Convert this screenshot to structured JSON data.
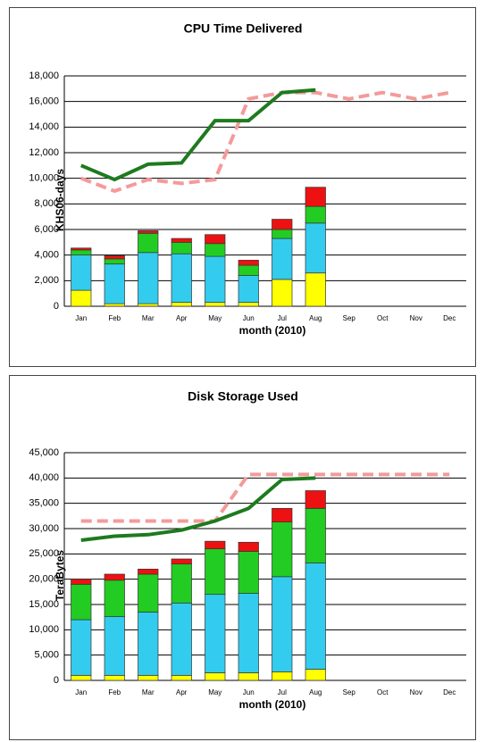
{
  "chart_data": [
    {
      "type": "bar",
      "stacked": true,
      "title": "CPU Time Delivered",
      "y_label": "KHS06-days",
      "x_label": "month (2010)",
      "categories": [
        "Jan",
        "Feb",
        "Mar",
        "Apr",
        "May",
        "Jun",
        "Jul",
        "Aug",
        "Sep",
        "Oct",
        "Nov",
        "Dec"
      ],
      "ylim": [
        0,
        18000
      ],
      "yticks": [
        0,
        {
          "value": 2000,
          "label": "2,000"
        },
        {
          "value": 4000,
          "label": "4,000"
        },
        {
          "value": 6000,
          "label": "6,000"
        },
        {
          "value": 8000,
          "label": "8,000"
        },
        {
          "value": 10000,
          "label": "10,000"
        },
        {
          "value": 12000,
          "label": "12,000"
        },
        {
          "value": 14000,
          "label": "14,000"
        },
        {
          "value": 16000,
          "label": "16,000"
        },
        {
          "value": 18000,
          "label": "18,000"
        }
      ],
      "grid": true,
      "series": [
        {
          "type": "bar",
          "color": "#ffff00",
          "values": [
            1250,
            200,
            200,
            300,
            300,
            300,
            2100,
            2600,
            null,
            null,
            null,
            null
          ]
        },
        {
          "type": "bar",
          "color": "#33ccee",
          "values": [
            2750,
            3100,
            4000,
            3800,
            3600,
            2100,
            3200,
            3900,
            null,
            null,
            null,
            null
          ]
        },
        {
          "type": "bar",
          "color": "#22cc22",
          "values": [
            400,
            400,
            1500,
            900,
            1000,
            800,
            700,
            1300,
            null,
            null,
            null,
            null
          ]
        },
        {
          "type": "bar",
          "color": "#ee1111",
          "values": [
            150,
            250,
            200,
            300,
            700,
            400,
            800,
            1500,
            null,
            null,
            null,
            null
          ]
        },
        {
          "type": "line",
          "dashed": true,
          "color": "#f49a9a",
          "values": [
            10000,
            9000,
            9900,
            9600,
            9900,
            16200,
            16700,
            16700,
            16200,
            16700,
            16200,
            16700
          ]
        },
        {
          "type": "line",
          "color": "#1e7a1e",
          "values": [
            11000,
            9900,
            11100,
            11200,
            14500,
            14500,
            16700,
            16900,
            null,
            null,
            null,
            null
          ]
        }
      ]
    },
    {
      "type": "bar",
      "stacked": true,
      "title": "Disk Storage Used",
      "y_label": "TeraBytes",
      "x_label": "month (2010)",
      "categories": [
        "Jan",
        "Feb",
        "Mar",
        "Apr",
        "May",
        "Jun",
        "Jul",
        "Aug",
        "Sep",
        "Oct",
        "Nov",
        "Dec"
      ],
      "ylim": [
        0,
        45000
      ],
      "yticks": [
        0,
        {
          "value": 5000,
          "label": "5,000"
        },
        {
          "value": 10000,
          "label": "10,000"
        },
        {
          "value": 15000,
          "label": "15,000"
        },
        {
          "value": 20000,
          "label": "20,000"
        },
        {
          "value": 25000,
          "label": "25,000"
        },
        {
          "value": 30000,
          "label": "30,000"
        },
        {
          "value": 35000,
          "label": "35,000"
        },
        {
          "value": 40000,
          "label": "40,000"
        },
        {
          "value": 45000,
          "label": "45,000"
        }
      ],
      "grid": true,
      "series": [
        {
          "type": "bar",
          "color": "#ffff00",
          "values": [
            1000,
            1000,
            1000,
            1000,
            1500,
            1500,
            1700,
            2200,
            null,
            null,
            null,
            null
          ]
        },
        {
          "type": "bar",
          "color": "#33ccee",
          "values": [
            11000,
            11600,
            12500,
            14300,
            15500,
            15700,
            18800,
            21000,
            null,
            null,
            null,
            null
          ]
        },
        {
          "type": "bar",
          "color": "#22cc22",
          "values": [
            7000,
            7200,
            7500,
            7700,
            9000,
            8300,
            10800,
            10800,
            null,
            null,
            null,
            null
          ]
        },
        {
          "type": "bar",
          "color": "#ee1111",
          "values": [
            1000,
            1200,
            1000,
            1000,
            1500,
            1800,
            2700,
            3500,
            null,
            null,
            null,
            null
          ]
        },
        {
          "type": "line",
          "dashed": true,
          "color": "#f49a9a",
          "values": [
            31500,
            31500,
            31500,
            31500,
            31500,
            40700,
            40700,
            40700,
            40700,
            40700,
            40700,
            40700
          ]
        },
        {
          "type": "line",
          "color": "#1e7a1e",
          "values": [
            27700,
            28500,
            28800,
            29700,
            31500,
            34000,
            39700,
            40000,
            null,
            null,
            null,
            null
          ]
        }
      ]
    }
  ]
}
